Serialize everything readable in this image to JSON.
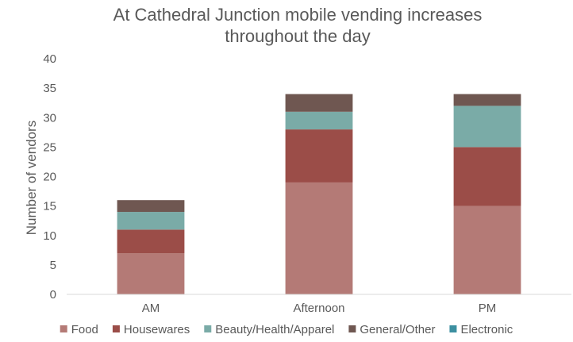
{
  "chart_data": {
    "type": "bar",
    "stacked": true,
    "title_lines": [
      "At Cathedral Junction mobile vending increases",
      "throughout the day"
    ],
    "xlabel": "",
    "ylabel": "Number of vendors",
    "categories": [
      "AM",
      "Afternoon",
      "PM"
    ],
    "ylim": [
      0,
      40
    ],
    "yticks": [
      0,
      5,
      10,
      15,
      20,
      25,
      30,
      35,
      40
    ],
    "grid": false,
    "legend_position": "bottom",
    "series": [
      {
        "name": "Food",
        "color": "#b47a76",
        "values": [
          7,
          19,
          15
        ]
      },
      {
        "name": "Housewares",
        "color": "#9b4d48",
        "values": [
          4,
          9,
          10
        ]
      },
      {
        "name": "Beauty/Health/Apparel",
        "color": "#7aaba7",
        "values": [
          3,
          3,
          7
        ]
      },
      {
        "name": "General/Other",
        "color": "#6f5751",
        "values": [
          2,
          3,
          2
        ]
      },
      {
        "name": "Electronic",
        "color": "#3c8fa0",
        "values": [
          0,
          0,
          0
        ]
      }
    ]
  }
}
